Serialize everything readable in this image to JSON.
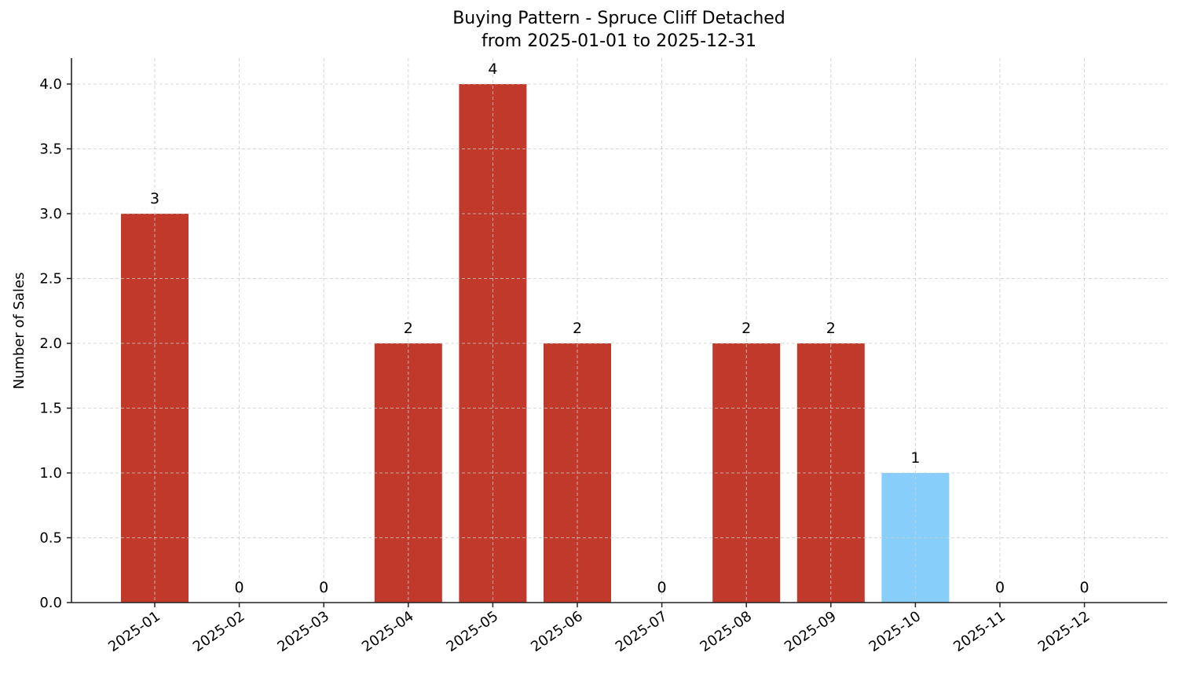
{
  "chart_data": {
    "type": "bar",
    "title": "Buying Pattern - Spruce Cliff Detached",
    "subtitle": "from 2025-01-01 to 2025-12-31",
    "xlabel": "",
    "ylabel": "Number of Sales",
    "categories": [
      "2025-01",
      "2025-02",
      "2025-03",
      "2025-04",
      "2025-05",
      "2025-06",
      "2025-07",
      "2025-08",
      "2025-09",
      "2025-10",
      "2025-11",
      "2025-12"
    ],
    "values": [
      3,
      0,
      0,
      2,
      4,
      2,
      0,
      2,
      2,
      1,
      0,
      0
    ],
    "bar_colors": [
      "#c0392b",
      "#c0392b",
      "#c0392b",
      "#c0392b",
      "#c0392b",
      "#c0392b",
      "#c0392b",
      "#c0392b",
      "#c0392b",
      "#87cefa",
      "#c0392b",
      "#c0392b"
    ],
    "highlighted_category": "2025-10",
    "ylim": [
      0,
      4.2
    ],
    "yticks": [
      "0.0",
      "0.5",
      "1.0",
      "1.5",
      "2.0",
      "2.5",
      "3.0",
      "3.5",
      "4.0"
    ],
    "grid": true,
    "legend": null
  }
}
